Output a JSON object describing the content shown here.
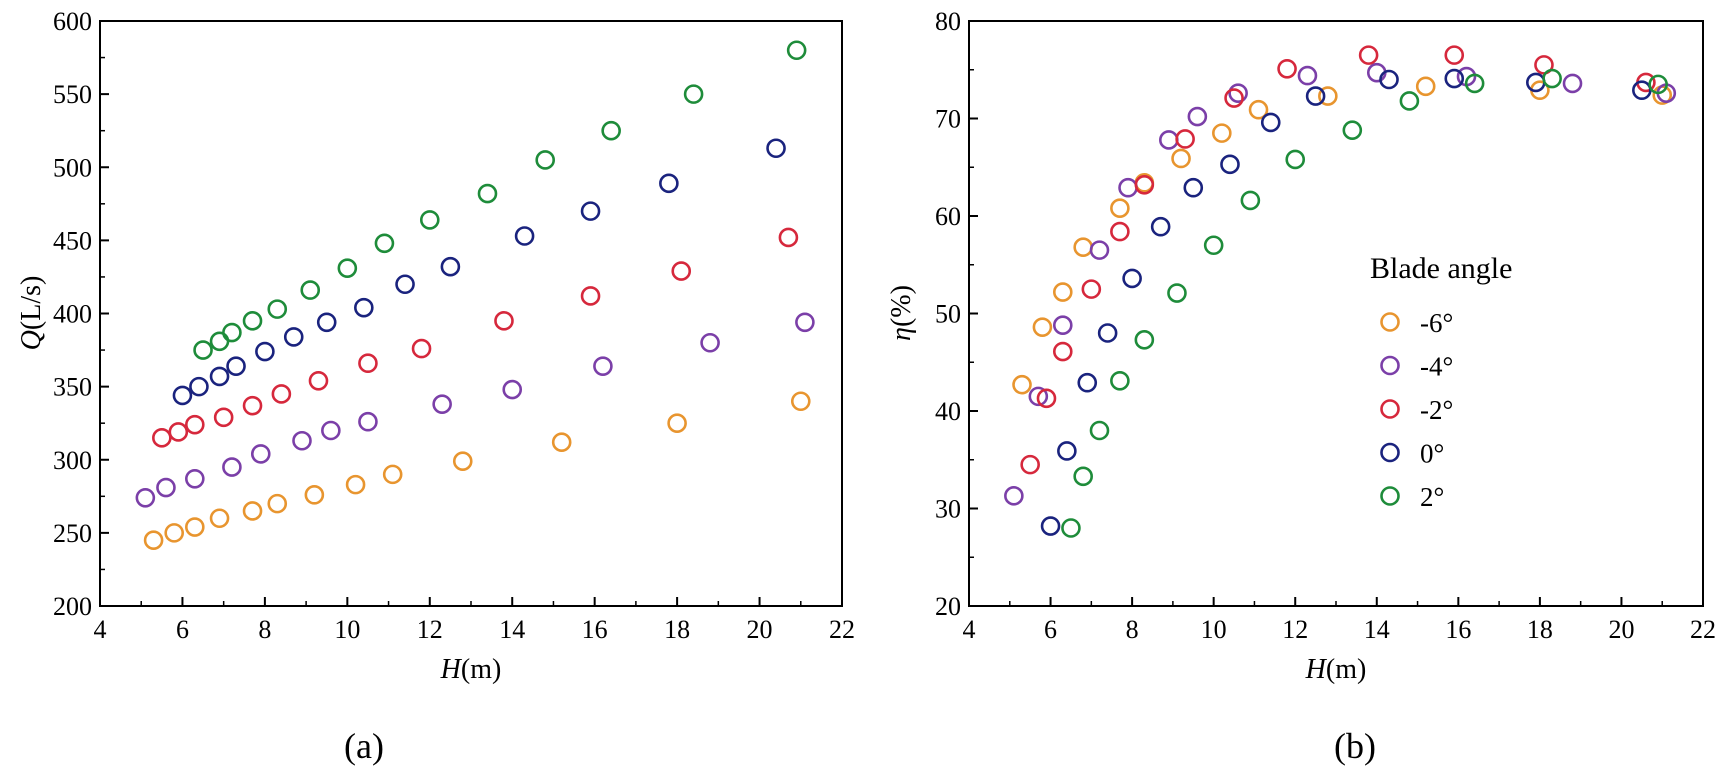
{
  "chart_data": [
    {
      "type": "scatter",
      "panel_label": "(a)",
      "xlabel_var": "H",
      "xlabel_unit": "(m)",
      "ylabel_var": "Q",
      "ylabel_unit": "(L/s)",
      "xlim": [
        4,
        22
      ],
      "ylim": [
        200,
        600
      ],
      "xticks": [
        4,
        6,
        8,
        10,
        12,
        14,
        16,
        18,
        20,
        22
      ],
      "yticks": [
        200,
        250,
        300,
        350,
        400,
        450,
        500,
        550,
        600
      ],
      "grid": false,
      "series": [
        {
          "name": "-6°",
          "color": "#E8952F",
          "points": [
            [
              5.3,
              245
            ],
            [
              5.8,
              250
            ],
            [
              6.3,
              254
            ],
            [
              6.9,
              260
            ],
            [
              7.7,
              265
            ],
            [
              8.3,
              270
            ],
            [
              9.2,
              276
            ],
            [
              10.2,
              283
            ],
            [
              11.1,
              290
            ],
            [
              12.8,
              299
            ],
            [
              15.2,
              312
            ],
            [
              18.0,
              325
            ],
            [
              21.0,
              340
            ]
          ]
        },
        {
          "name": "-4°",
          "color": "#7B3FA8",
          "points": [
            [
              5.1,
              274
            ],
            [
              5.6,
              281
            ],
            [
              6.3,
              287
            ],
            [
              7.2,
              295
            ],
            [
              7.9,
              304
            ],
            [
              8.9,
              313
            ],
            [
              9.6,
              320
            ],
            [
              10.5,
              326
            ],
            [
              12.3,
              338
            ],
            [
              14.0,
              348
            ],
            [
              16.2,
              364
            ],
            [
              18.8,
              380
            ],
            [
              21.1,
              394
            ]
          ]
        },
        {
          "name": "-2°",
          "color": "#D6283C",
          "points": [
            [
              5.5,
              315
            ],
            [
              5.9,
              319
            ],
            [
              6.3,
              324
            ],
            [
              7.0,
              329
            ],
            [
              7.7,
              337
            ],
            [
              8.4,
              345
            ],
            [
              9.3,
              354
            ],
            [
              10.5,
              366
            ],
            [
              11.8,
              376
            ],
            [
              13.8,
              395
            ],
            [
              15.9,
              412
            ],
            [
              18.1,
              429
            ],
            [
              20.7,
              452
            ]
          ]
        },
        {
          "name": "0°",
          "color": "#1A237E",
          "points": [
            [
              6.0,
              344
            ],
            [
              6.4,
              350
            ],
            [
              6.9,
              357
            ],
            [
              7.3,
              364
            ],
            [
              8.0,
              374
            ],
            [
              8.7,
              384
            ],
            [
              9.5,
              394
            ],
            [
              10.4,
              404
            ],
            [
              11.4,
              420
            ],
            [
              12.5,
              432
            ],
            [
              14.3,
              453
            ],
            [
              15.9,
              470
            ],
            [
              17.8,
              489
            ],
            [
              20.4,
              513
            ]
          ]
        },
        {
          "name": "2°",
          "color": "#1E8C3A",
          "points": [
            [
              6.5,
              375
            ],
            [
              6.9,
              381
            ],
            [
              7.2,
              387
            ],
            [
              7.7,
              395
            ],
            [
              8.3,
              403
            ],
            [
              9.1,
              416
            ],
            [
              10.0,
              431
            ],
            [
              10.9,
              448
            ],
            [
              12.0,
              464
            ],
            [
              13.4,
              482
            ],
            [
              14.8,
              505
            ],
            [
              16.4,
              525
            ],
            [
              18.4,
              550
            ],
            [
              20.9,
              580
            ]
          ]
        }
      ]
    },
    {
      "type": "scatter",
      "panel_label": "(b)",
      "xlabel_var": "H",
      "xlabel_unit": "(m)",
      "ylabel_var": "η",
      "ylabel_unit": "(%)",
      "xlim": [
        4,
        22
      ],
      "ylim": [
        20,
        80
      ],
      "xticks": [
        4,
        6,
        8,
        10,
        12,
        14,
        16,
        18,
        20,
        22
      ],
      "yticks": [
        20,
        30,
        40,
        50,
        60,
        70,
        80
      ],
      "grid": false,
      "legend_title": "Blade angle",
      "legend_position": "right-center",
      "series": [
        {
          "name": "-6°",
          "color": "#E8952F",
          "points": [
            [
              5.3,
              42.7
            ],
            [
              5.8,
              48.6
            ],
            [
              6.3,
              52.2
            ],
            [
              6.8,
              56.8
            ],
            [
              7.7,
              60.8
            ],
            [
              8.3,
              63.4
            ],
            [
              9.2,
              65.9
            ],
            [
              10.2,
              68.5
            ],
            [
              11.1,
              70.9
            ],
            [
              12.8,
              72.3
            ],
            [
              15.2,
              73.3
            ],
            [
              18.0,
              72.9
            ],
            [
              21.0,
              72.4
            ]
          ]
        },
        {
          "name": "-4°",
          "color": "#7B3FA8",
          "points": [
            [
              5.1,
              31.3
            ],
            [
              5.7,
              41.5
            ],
            [
              6.3,
              48.8
            ],
            [
              7.2,
              56.5
            ],
            [
              7.9,
              62.9
            ],
            [
              8.9,
              67.8
            ],
            [
              9.6,
              70.2
            ],
            [
              10.6,
              72.6
            ],
            [
              12.3,
              74.4
            ],
            [
              14.0,
              74.7
            ],
            [
              16.2,
              74.3
            ],
            [
              18.8,
              73.6
            ],
            [
              21.1,
              72.6
            ]
          ]
        },
        {
          "name": "-2°",
          "color": "#D6283C",
          "points": [
            [
              5.5,
              34.5
            ],
            [
              5.9,
              41.3
            ],
            [
              6.3,
              46.1
            ],
            [
              7.0,
              52.5
            ],
            [
              7.7,
              58.4
            ],
            [
              8.3,
              63.2
            ],
            [
              9.3,
              67.9
            ],
            [
              10.5,
              72.1
            ],
            [
              11.8,
              75.1
            ],
            [
              13.8,
              76.5
            ],
            [
              15.9,
              76.5
            ],
            [
              18.1,
              75.5
            ],
            [
              20.6,
              73.7
            ]
          ]
        },
        {
          "name": "0°",
          "color": "#1A237E",
          "points": [
            [
              6.0,
              28.2
            ],
            [
              6.4,
              35.9
            ],
            [
              6.9,
              42.9
            ],
            [
              7.4,
              48.0
            ],
            [
              8.0,
              53.6
            ],
            [
              8.7,
              58.9
            ],
            [
              9.5,
              62.9
            ],
            [
              10.4,
              65.3
            ],
            [
              11.4,
              69.6
            ],
            [
              12.5,
              72.3
            ],
            [
              14.3,
              74.0
            ],
            [
              15.9,
              74.1
            ],
            [
              17.9,
              73.7
            ],
            [
              20.5,
              72.9
            ]
          ]
        },
        {
          "name": "2°",
          "color": "#1E8C3A",
          "points": [
            [
              6.5,
              28.0
            ],
            [
              6.8,
              33.3
            ],
            [
              7.2,
              38.0
            ],
            [
              7.7,
              43.1
            ],
            [
              8.3,
              47.3
            ],
            [
              9.1,
              52.1
            ],
            [
              10.0,
              57.0
            ],
            [
              10.9,
              61.6
            ],
            [
              12.0,
              65.8
            ],
            [
              13.4,
              68.8
            ],
            [
              14.8,
              71.8
            ],
            [
              16.4,
              73.6
            ],
            [
              18.3,
              74.1
            ],
            [
              20.9,
              73.5
            ]
          ]
        }
      ]
    }
  ]
}
